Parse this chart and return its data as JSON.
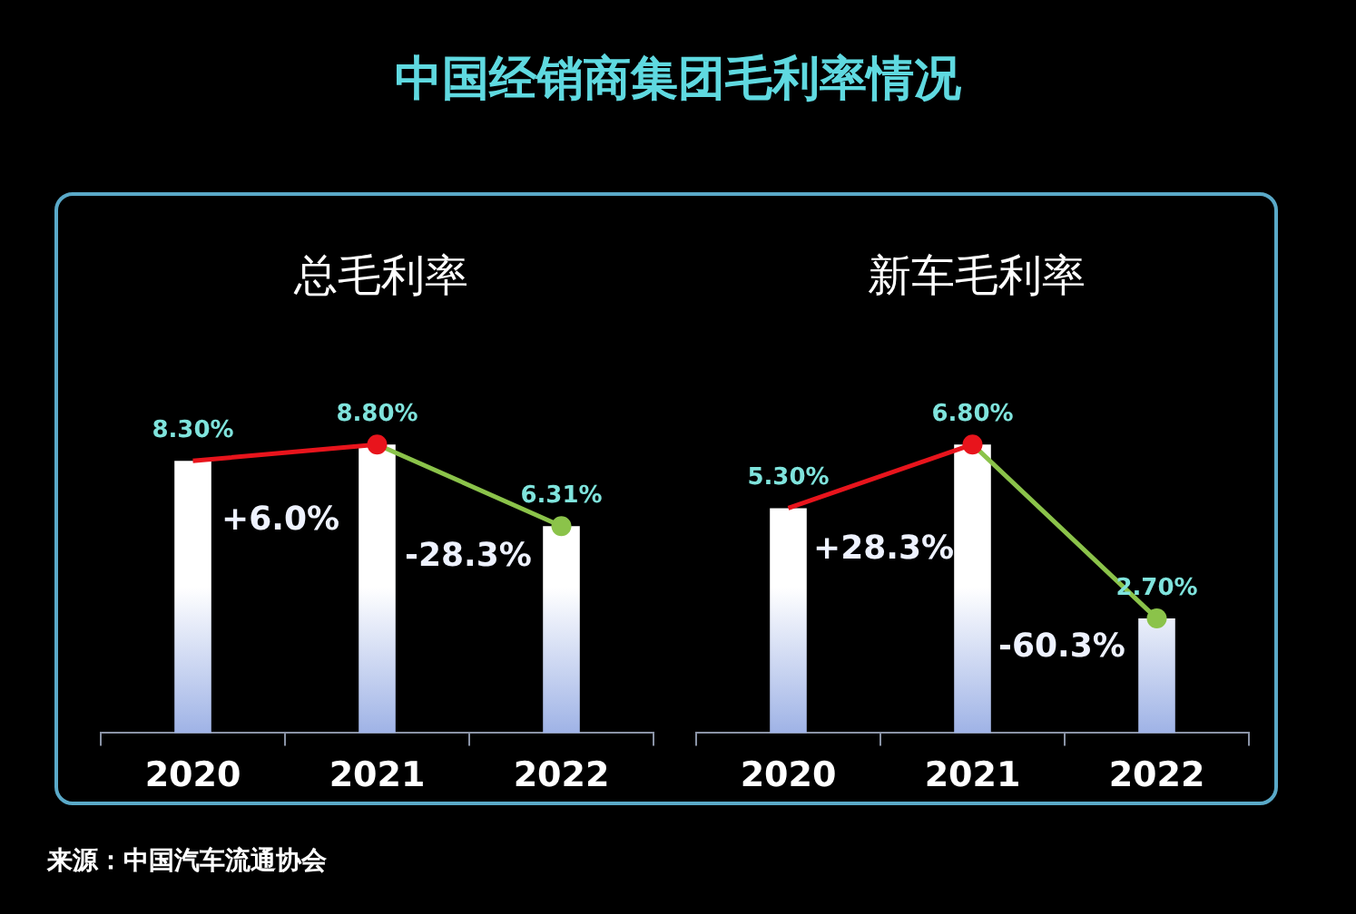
{
  "chart_data": [
    {
      "type": "bar",
      "title": "中国经销商集团毛利率情况",
      "subtitle": "总毛利率",
      "categories": [
        "2020",
        "2021",
        "2022"
      ],
      "series": [
        {
          "color": "#ffffff",
          "values": [
            8.3,
            8.8,
            6.31
          ]
        },
        {
          "type": "line",
          "colors": [
            "#e8141c",
            "#e8141c",
            "#8bc34a"
          ],
          "values": [
            8.3,
            8.8,
            6.31
          ],
          "value_labels": [
            "8.30%",
            "8.80%",
            "6.31%"
          ],
          "marker": "circle"
        }
      ],
      "annotations": [
        "+6.0%",
        "-28.3%"
      ]
    },
    {
      "type": "bar",
      "title": "新车毛利率",
      "categories": [
        "2020",
        "2021",
        "2022"
      ],
      "series": [
        {
          "color": "#ffffff",
          "values": [
            5.3,
            6.8,
            2.7
          ]
        },
        {
          "type": "line",
          "colors": [
            "#e8141c",
            "#e8141c",
            "#8bc34a"
          ],
          "values": [
            5.3,
            6.8,
            2.7
          ],
          "value_labels": [
            "5.30%",
            "6.80%",
            "2.70%"
          ],
          "marker": "circle"
        }
      ],
      "annotations": [
        "+28.3%",
        "-60.3%",
        "来源：中国汽车流通协会"
      ]
    }
  ]
}
